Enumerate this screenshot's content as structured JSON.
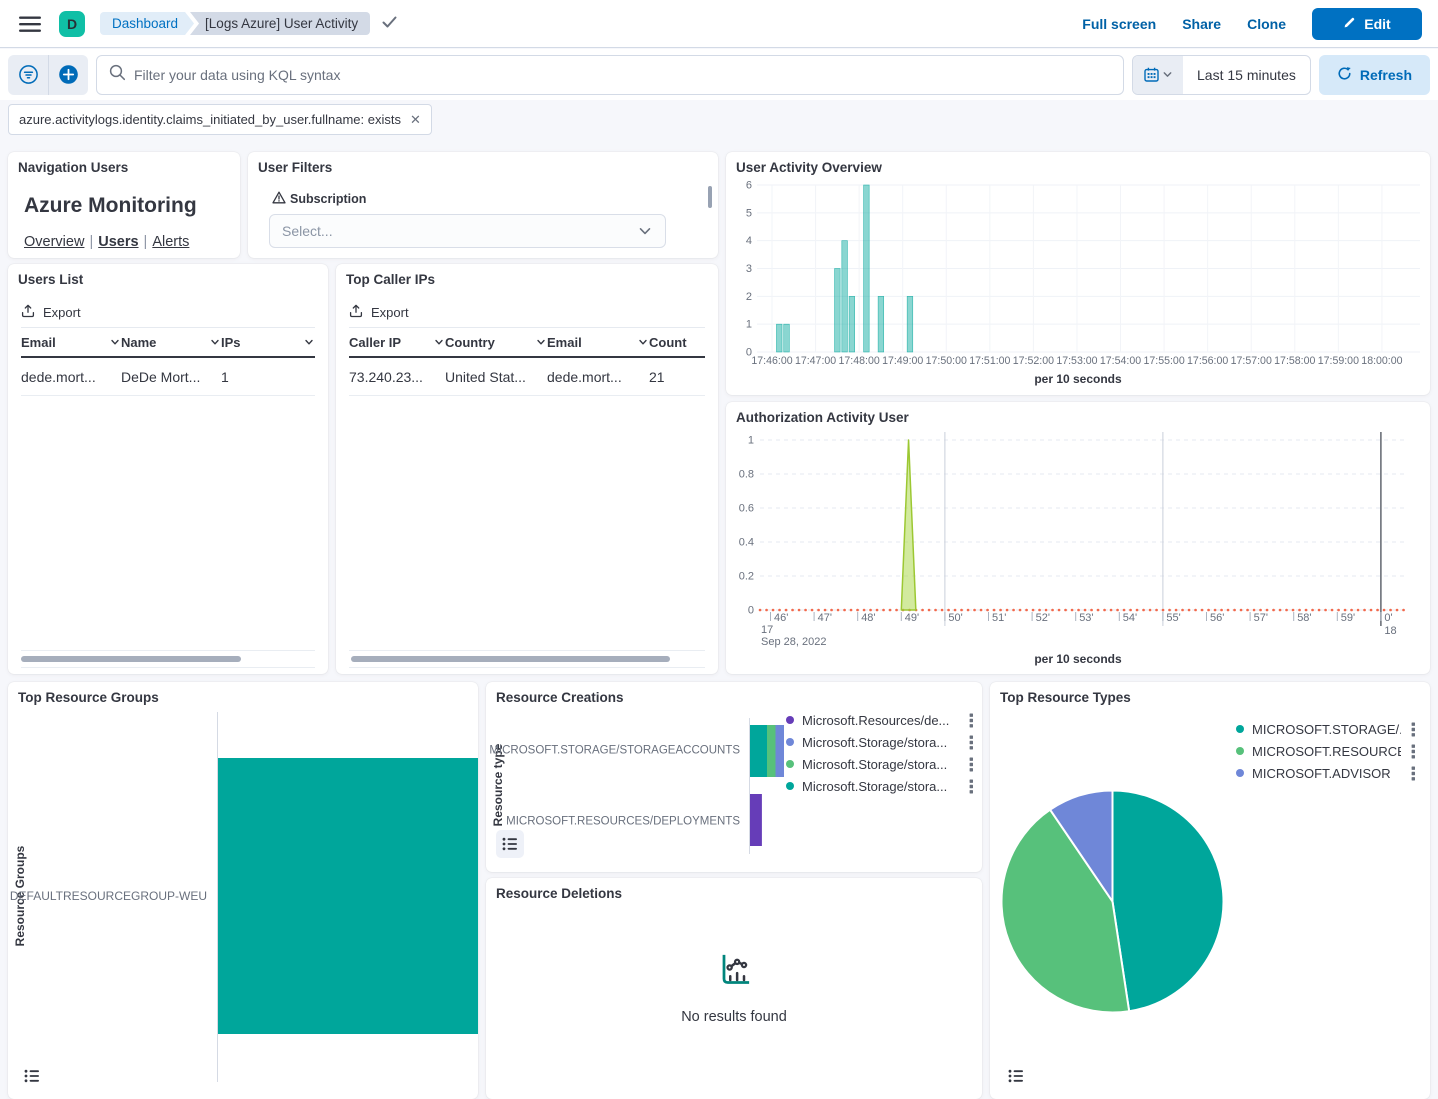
{
  "header": {
    "avatar_initial": "D",
    "breadcrumb_dashboard": "Dashboard",
    "breadcrumb_current": "[Logs Azure] User Activity",
    "action_full_screen": "Full screen",
    "action_share": "Share",
    "action_clone": "Clone",
    "edit_label": "Edit"
  },
  "toolbar": {
    "search_placeholder": "Filter your data using KQL syntax",
    "time_range": "Last 15 minutes",
    "refresh_label": "Refresh"
  },
  "filter_bar": {
    "pill": "azure.activitylogs.identity.claims_initiated_by_user.fullname: exists"
  },
  "panels": {
    "navigation": {
      "title": "Navigation Users",
      "heading": "Azure Monitoring",
      "link_overview": "Overview",
      "link_users": "Users",
      "link_alerts": "Alerts",
      "link_separator": "|"
    },
    "user_filters": {
      "title": "User Filters",
      "subscription_label": "Subscription",
      "select_placeholder": "Select..."
    },
    "users_list": {
      "title": "Users List",
      "export_label": "Export",
      "columns": [
        {
          "label": "Email",
          "sortable": true
        },
        {
          "label": "Name",
          "sortable": true
        },
        {
          "label": "IPs",
          "sortable": true
        }
      ],
      "rows": [
        [
          "dede.mort...",
          "DeDe Mort...",
          "1"
        ]
      ]
    },
    "top_caller_ips": {
      "title": "Top Caller IPs",
      "export_label": "Export",
      "columns": [
        {
          "label": "Caller IP",
          "sortable": true
        },
        {
          "label": "Country",
          "sortable": true
        },
        {
          "label": "Email",
          "sortable": true
        },
        {
          "label": "Count",
          "sortable": false
        }
      ],
      "rows": [
        [
          "73.240.23...",
          "United Stat...",
          "dede.mort...",
          "21"
        ]
      ]
    },
    "resource_deletions": {
      "title": "Resource Deletions",
      "empty_message": "No results found"
    }
  },
  "chart_data": [
    {
      "id": "user_activity_overview",
      "type": "bar",
      "title": "User Activity Overview",
      "xlabel": "per 10 seconds",
      "ylim": [
        0,
        6
      ],
      "yticks": [
        0,
        1,
        2,
        3,
        4,
        5,
        6
      ],
      "x_minute_labels": [
        "17:46:00",
        "17:47:00",
        "17:48:00",
        "17:49:00",
        "17:50:00",
        "17:51:00",
        "17:52:00",
        "17:53:00",
        "17:54:00",
        "17:55:00",
        "17:56:00",
        "17:57:00",
        "17:58:00",
        "17:59:00",
        "18:00:00"
      ],
      "bar_color": "rgba(0,166,155,0.46)",
      "bar_stroke": "rgba(0,166,155,0.75)",
      "points": [
        {
          "time": "17:46:10",
          "value": 1
        },
        {
          "time": "17:46:20",
          "value": 1
        },
        {
          "time": "17:47:30",
          "value": 3
        },
        {
          "time": "17:47:40",
          "value": 4
        },
        {
          "time": "17:47:50",
          "value": 2
        },
        {
          "time": "17:48:10",
          "value": 6
        },
        {
          "time": "17:48:30",
          "value": 2
        },
        {
          "time": "17:49:10",
          "value": 2
        }
      ]
    },
    {
      "id": "authorization_activity_user",
      "type": "area",
      "title": "Authorization Activity User",
      "xlabel": "per 10 seconds",
      "ylim": [
        0,
        1
      ],
      "yticks": [
        0,
        0.2,
        0.4,
        0.6,
        0.8,
        1
      ],
      "x_minute_ticks": [
        "46'",
        "47'",
        "48'",
        "49'",
        "50'",
        "51'",
        "52'",
        "53'",
        "54'",
        "55'",
        "56'",
        "57'",
        "58'",
        "59'",
        "0'"
      ],
      "hour_label_start": "17",
      "hour_label_end": "18",
      "date_label": "Sep 28, 2022",
      "spike": {
        "start": "17:49:00",
        "peak_time": "17:49:10",
        "end": "17:49:20",
        "peak_value": 1
      },
      "spike_stroke": "#9CC832",
      "spike_fill": "rgba(166,213,62,0.5)",
      "baseline_value": 0,
      "baseline_color": "#F2694C"
    },
    {
      "id": "top_resource_groups",
      "type": "bar",
      "orientation": "horizontal",
      "title": "Top Resource Groups",
      "axis_label": "Resource Groups",
      "categories": [
        "DEFAULTRESOURCEGROUP-WEU"
      ],
      "values": [
        1
      ],
      "bar_color": "#00A69B"
    },
    {
      "id": "resource_creations",
      "type": "bar",
      "orientation": "horizontal",
      "stacked": true,
      "title": "Resource Creations",
      "axis_label": "Resource type",
      "categories": [
        "MICROSOFT.STORAGE/STORAGEACCOUNTS",
        "MICROSOFT.RESOURCES/DEPLOYMENTS"
      ],
      "series": [
        {
          "name": "Microsoft.Resources/de...",
          "color": "#663DB8",
          "values": [
            0,
            1.4
          ]
        },
        {
          "name": "Microsoft.Storage/stora...",
          "color": "#6F87D8",
          "values": [
            1,
            0
          ]
        },
        {
          "name": "Microsoft.Storage/stora...",
          "color": "#57C17B",
          "values": [
            1,
            0
          ]
        },
        {
          "name": "Microsoft.Storage/stora...",
          "color": "#00A69B",
          "values": [
            2,
            0
          ]
        }
      ]
    },
    {
      "id": "top_resource_types",
      "type": "pie",
      "title": "Top Resource Types",
      "slices": [
        {
          "label": "MICROSOFT.STORAGE/...",
          "fraction": 0.476,
          "color": "#00A69B"
        },
        {
          "label": "MICROSOFT.RESOURCE...",
          "fraction": 0.429,
          "color": "#57C17B"
        },
        {
          "label": "MICROSOFT.ADVISOR",
          "fraction": 0.095,
          "color": "#6F87D8"
        }
      ]
    }
  ]
}
